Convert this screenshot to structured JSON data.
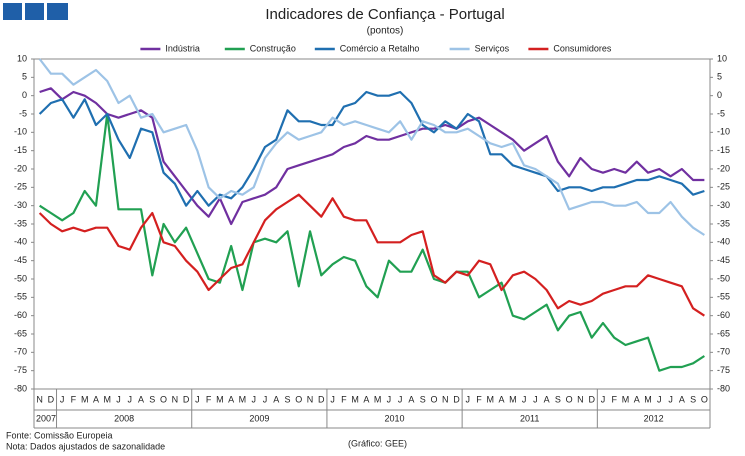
{
  "chart_data": {
    "type": "line",
    "title": "Indicadores de Confiança - Portugal",
    "subtitle": "(pontos)",
    "source": "Fonte: Comissão Europeia",
    "note": "Nota: Dados ajustados de sazonalidade",
    "credit": "(Gráfico: GEE)",
    "categories": [
      {
        "label": "N",
        "year": "2007"
      },
      {
        "label": "D",
        "year": "2007"
      },
      {
        "label": "J",
        "year": "2008"
      },
      {
        "label": "F",
        "year": "2008"
      },
      {
        "label": "M",
        "year": "2008"
      },
      {
        "label": "A",
        "year": "2008"
      },
      {
        "label": "M",
        "year": "2008"
      },
      {
        "label": "J",
        "year": "2008"
      },
      {
        "label": "J",
        "year": "2008"
      },
      {
        "label": "A",
        "year": "2008"
      },
      {
        "label": "S",
        "year": "2008"
      },
      {
        "label": "O",
        "year": "2008"
      },
      {
        "label": "N",
        "year": "2008"
      },
      {
        "label": "D",
        "year": "2008"
      },
      {
        "label": "J",
        "year": "2009"
      },
      {
        "label": "F",
        "year": "2009"
      },
      {
        "label": "M",
        "year": "2009"
      },
      {
        "label": "A",
        "year": "2009"
      },
      {
        "label": "M",
        "year": "2009"
      },
      {
        "label": "J",
        "year": "2009"
      },
      {
        "label": "J",
        "year": "2009"
      },
      {
        "label": "A",
        "year": "2009"
      },
      {
        "label": "S",
        "year": "2009"
      },
      {
        "label": "O",
        "year": "2009"
      },
      {
        "label": "N",
        "year": "2009"
      },
      {
        "label": "D",
        "year": "2009"
      },
      {
        "label": "J",
        "year": "2010"
      },
      {
        "label": "F",
        "year": "2010"
      },
      {
        "label": "M",
        "year": "2010"
      },
      {
        "label": "A",
        "year": "2010"
      },
      {
        "label": "M",
        "year": "2010"
      },
      {
        "label": "J",
        "year": "2010"
      },
      {
        "label": "J",
        "year": "2010"
      },
      {
        "label": "A",
        "year": "2010"
      },
      {
        "label": "S",
        "year": "2010"
      },
      {
        "label": "O",
        "year": "2010"
      },
      {
        "label": "N",
        "year": "2010"
      },
      {
        "label": "D",
        "year": "2010"
      },
      {
        "label": "J",
        "year": "2011"
      },
      {
        "label": "F",
        "year": "2011"
      },
      {
        "label": "M",
        "year": "2011"
      },
      {
        "label": "A",
        "year": "2011"
      },
      {
        "label": "M",
        "year": "2011"
      },
      {
        "label": "J",
        "year": "2011"
      },
      {
        "label": "J",
        "year": "2011"
      },
      {
        "label": "A",
        "year": "2011"
      },
      {
        "label": "S",
        "year": "2011"
      },
      {
        "label": "O",
        "year": "2011"
      },
      {
        "label": "N",
        "year": "2011"
      },
      {
        "label": "D",
        "year": "2011"
      },
      {
        "label": "J",
        "year": "2012"
      },
      {
        "label": "F",
        "year": "2012"
      },
      {
        "label": "M",
        "year": "2012"
      },
      {
        "label": "A",
        "year": "2012"
      },
      {
        "label": "M",
        "year": "2012"
      },
      {
        "label": "J",
        "year": "2012"
      },
      {
        "label": "J",
        "year": "2012"
      },
      {
        "label": "A",
        "year": "2012"
      },
      {
        "label": "S",
        "year": "2012"
      },
      {
        "label": "O",
        "year": "2012"
      }
    ],
    "series": [
      {
        "name": "Indústria",
        "color": "#7030a0",
        "values": [
          1,
          2,
          -1,
          1,
          0,
          -2,
          -5,
          -6,
          -5,
          -4,
          -6,
          -18,
          -22,
          -26,
          -30,
          -33,
          -28,
          -35,
          -29,
          -28,
          -27,
          -25,
          -20,
          -19,
          -18,
          -17,
          -16,
          -14,
          -13,
          -11,
          -12,
          -12,
          -11,
          -10,
          -9,
          -9,
          -8,
          -9,
          -7,
          -6,
          -8,
          -10,
          -12,
          -15,
          -13,
          -11,
          -18,
          -22,
          -17,
          -20,
          -21,
          -20,
          -21,
          -18,
          -21,
          -20,
          -22,
          -20,
          -23,
          -23
        ]
      },
      {
        "name": "Construção",
        "color": "#21a052",
        "values": [
          -30,
          -32,
          -34,
          -32,
          -26,
          -30,
          -5,
          -31,
          -31,
          -31,
          -49,
          -35,
          -40,
          -36,
          -43,
          -50,
          -51,
          -41,
          -53,
          -40,
          -39,
          -40,
          -37,
          -52,
          -37,
          -49,
          -46,
          -44,
          -45,
          -52,
          -55,
          -45,
          -48,
          -48,
          -42,
          -50,
          -51,
          -48,
          -48,
          -55,
          -53,
          -51,
          -60,
          -61,
          -59,
          -57,
          -64,
          -60,
          -59,
          -66,
          -62,
          -66,
          -68,
          -67,
          -66,
          -75,
          -74,
          -74,
          -73,
          -71
        ]
      },
      {
        "name": "Comércio a Retalho",
        "color": "#1f6fb0",
        "values": [
          -5,
          -2,
          -1,
          -6,
          -1,
          -8,
          -5,
          -12,
          -17,
          -9,
          -10,
          -21,
          -24,
          -30,
          -26,
          -30,
          -27,
          -28,
          -25,
          -20,
          -14,
          -12,
          -4,
          -7,
          -7,
          -8,
          -8,
          -3,
          -2,
          1,
          0,
          0,
          1,
          -2,
          -8,
          -10,
          -7,
          -9,
          -5,
          -7,
          -16,
          -16,
          -19,
          -20,
          -21,
          -22,
          -26,
          -25,
          -25,
          -26,
          -25,
          -25,
          -24,
          -23,
          -23,
          -22,
          -23,
          -24,
          -27,
          -26
        ]
      },
      {
        "name": "Serviços",
        "color": "#9dc3e6",
        "values": [
          10,
          6,
          6,
          3,
          5,
          7,
          4,
          -2,
          0,
          -6,
          -5,
          -10,
          -9,
          -8,
          -15,
          -25,
          -28,
          -26,
          -27,
          -25,
          -17,
          -13,
          -10,
          -12,
          -11,
          -10,
          -6,
          -8,
          -7,
          -8,
          -9,
          -10,
          -7,
          -12,
          -7,
          -8,
          -10,
          -10,
          -9,
          -11,
          -13,
          -14,
          -13,
          -19,
          -20,
          -22,
          -24,
          -31,
          -30,
          -29,
          -29,
          -30,
          -30,
          -29,
          -32,
          -32,
          -29,
          -33,
          -36,
          -38
        ]
      },
      {
        "name": "Consumidores",
        "color": "#d42020",
        "values": [
          -32,
          -35,
          -37,
          -36,
          -37,
          -36,
          -36,
          -41,
          -42,
          -36,
          -32,
          -40,
          -41,
          -45,
          -48,
          -53,
          -50,
          -47,
          -46,
          -40,
          -34,
          -31,
          -29,
          -27,
          -30,
          -33,
          -28,
          -33,
          -34,
          -34,
          -40,
          -40,
          -40,
          -38,
          -37,
          -49,
          -51,
          -48,
          -49,
          -45,
          -46,
          -53,
          -49,
          -48,
          -50,
          -53,
          -58,
          -56,
          -57,
          -56,
          -54,
          -53,
          -52,
          -52,
          -49,
          -50,
          -51,
          -52,
          -58,
          -60
        ]
      }
    ],
    "ylim": [
      -80,
      10
    ],
    "yticks": [
      -80,
      -75,
      -70,
      -65,
      -60,
      -55,
      -50,
      -45,
      -40,
      -35,
      -30,
      -25,
      -20,
      -15,
      -10,
      -5,
      0,
      5,
      10
    ],
    "legend": "top",
    "grid": false
  }
}
